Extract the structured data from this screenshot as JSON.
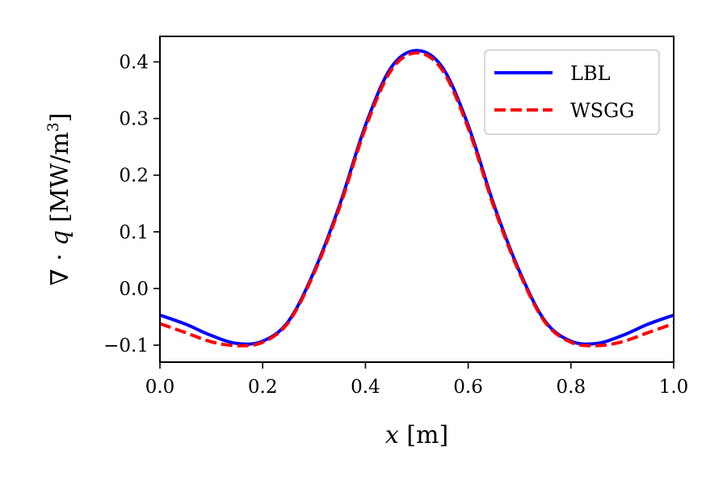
{
  "chart_data": {
    "type": "line",
    "title": "",
    "xlabel_var": "x",
    "xlabel_unit": " [m]",
    "ylabel_prefix": "∇ · ",
    "ylabel_var": "q",
    "ylabel_unit": " [MW/m",
    "ylabel_sup": "3",
    "ylabel_close": "]",
    "xlim": [
      0.0,
      1.0
    ],
    "ylim": [
      -0.13,
      0.445
    ],
    "xticks": [
      0.0,
      0.2,
      0.4,
      0.6,
      0.8,
      1.0
    ],
    "xtick_labels": [
      "0.0",
      "0.2",
      "0.4",
      "0.6",
      "0.8",
      "1.0"
    ],
    "yticks": [
      -0.1,
      0.0,
      0.1,
      0.2,
      0.3,
      0.4
    ],
    "ytick_labels": [
      "−0.1",
      "0.0",
      "0.1",
      "0.2",
      "0.3",
      "0.4"
    ],
    "grid": false,
    "legend_position": "top-right",
    "series": [
      {
        "name": "LBL",
        "color": "#0000ff",
        "style": "solid",
        "x": [
          0.0,
          0.05,
          0.1,
          0.15,
          0.2,
          0.25,
          0.3,
          0.35,
          0.4,
          0.45,
          0.5,
          0.55,
          0.6,
          0.65,
          0.7,
          0.75,
          0.8,
          0.85,
          0.9,
          0.95,
          1.0
        ],
        "y": [
          -0.047,
          -0.063,
          -0.083,
          -0.097,
          -0.093,
          -0.058,
          0.03,
          0.148,
          0.288,
          0.39,
          0.42,
          0.39,
          0.288,
          0.148,
          0.03,
          -0.058,
          -0.093,
          -0.097,
          -0.083,
          -0.063,
          -0.047
        ]
      },
      {
        "name": "WSGG",
        "color": "#ff0000",
        "style": "dashed",
        "x": [
          0.0,
          0.05,
          0.1,
          0.15,
          0.2,
          0.25,
          0.3,
          0.35,
          0.4,
          0.45,
          0.5,
          0.55,
          0.6,
          0.65,
          0.7,
          0.75,
          0.8,
          0.85,
          0.9,
          0.95,
          1.0
        ],
        "y": [
          -0.062,
          -0.078,
          -0.094,
          -0.101,
          -0.095,
          -0.06,
          0.027,
          0.144,
          0.283,
          0.385,
          0.416,
          0.385,
          0.283,
          0.144,
          0.027,
          -0.06,
          -0.095,
          -0.101,
          -0.094,
          -0.078,
          -0.062
        ]
      }
    ]
  }
}
